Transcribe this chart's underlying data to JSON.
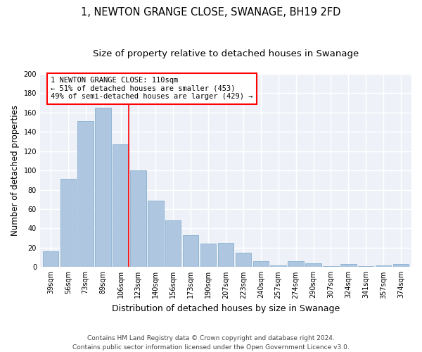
{
  "title1": "1, NEWTON GRANGE CLOSE, SWANAGE, BH19 2FD",
  "title2": "Size of property relative to detached houses in Swanage",
  "xlabel": "Distribution of detached houses by size in Swanage",
  "ylabel": "Number of detached properties",
  "categories": [
    "39sqm",
    "56sqm",
    "73sqm",
    "89sqm",
    "106sqm",
    "123sqm",
    "140sqm",
    "156sqm",
    "173sqm",
    "190sqm",
    "207sqm",
    "223sqm",
    "240sqm",
    "257sqm",
    "274sqm",
    "290sqm",
    "307sqm",
    "324sqm",
    "341sqm",
    "357sqm",
    "374sqm"
  ],
  "values": [
    16,
    91,
    151,
    165,
    127,
    100,
    69,
    48,
    33,
    24,
    25,
    15,
    6,
    2,
    6,
    4,
    1,
    3,
    1,
    2,
    3
  ],
  "bar_color": "#aec6df",
  "bar_edge_color": "#7aa8cc",
  "vline_x_index": 4,
  "vline_color": "red",
  "annotation_text": "1 NEWTON GRANGE CLOSE: 110sqm\n← 51% of detached houses are smaller (453)\n49% of semi-detached houses are larger (429) →",
  "annotation_box_facecolor": "white",
  "annotation_box_edgecolor": "red",
  "ylim": [
    0,
    200
  ],
  "yticks": [
    0,
    20,
    40,
    60,
    80,
    100,
    120,
    140,
    160,
    180,
    200
  ],
  "bg_color": "#eef2f8",
  "grid_color": "white",
  "footer": "Contains HM Land Registry data © Crown copyright and database right 2024.\nContains public sector information licensed under the Open Government Licence v3.0.",
  "title1_fontsize": 10.5,
  "title2_fontsize": 9.5,
  "xlabel_fontsize": 9,
  "ylabel_fontsize": 8.5,
  "tick_fontsize": 7,
  "annotation_fontsize": 7.5,
  "footer_fontsize": 6.5
}
